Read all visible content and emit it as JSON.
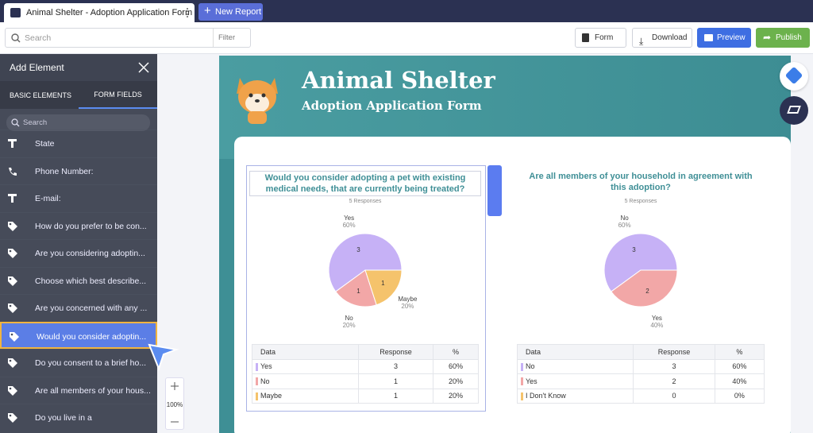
{
  "tabs": {
    "active": "Animal Shelter - Adoption Application Form",
    "new": "New Report"
  },
  "toolbar": {
    "search": "Search",
    "filter": "Filter",
    "form": "Form",
    "download": "Download",
    "preview": "Preview",
    "publish": "Publish"
  },
  "sidebar": {
    "title": "Add Element",
    "tabs": [
      "BASIC ELEMENTS",
      "FORM FIELDS"
    ],
    "search": "Search",
    "items": [
      "State",
      "Phone Number:",
      "E-mail:",
      "How do you prefer to be con...",
      "Are you considering adoptin...",
      "Choose which best describe...",
      "Are you concerned with any ...",
      "Would you consider adoptin...",
      "Do you consent to a brief ho...",
      "Are all members of your hous...",
      "Do you live in a"
    ]
  },
  "zoom": "100%",
  "report": {
    "title": "Animal Shelter",
    "subtitle": "Adoption Application Form"
  },
  "charts": [
    {
      "type": "pie",
      "question": "Would you consider adopting a pet with existing medical needs, that are currently being treated?",
      "responses": "5 Responses",
      "slices": [
        {
          "label": "Yes",
          "value": 3,
          "percent": "60%",
          "color": "#c6b1f6"
        },
        {
          "label": "No",
          "value": 1,
          "percent": "20%",
          "color": "#f2a7a7"
        },
        {
          "label": "Maybe",
          "value": 1,
          "percent": "20%",
          "color": "#f5c36c"
        }
      ],
      "table": {
        "headers": [
          "Data",
          "Response",
          "%"
        ],
        "rows": [
          {
            "color": "#c6b1f6",
            "cells": [
              "Yes",
              "3",
              "60%"
            ]
          },
          {
            "color": "#f2a7a7",
            "cells": [
              "No",
              "1",
              "20%"
            ]
          },
          {
            "color": "#f5c36c",
            "cells": [
              "Maybe",
              "1",
              "20%"
            ]
          }
        ]
      }
    },
    {
      "type": "pie",
      "question": "Are all members of your household in agreement with this adoption?",
      "responses": "5 Responses",
      "slices": [
        {
          "label": "No",
          "value": 3,
          "percent": "60%",
          "color": "#c6b1f6"
        },
        {
          "label": "Yes",
          "value": 2,
          "percent": "40%",
          "color": "#f2a7a7"
        }
      ],
      "table": {
        "headers": [
          "Data",
          "Response",
          "%"
        ],
        "rows": [
          {
            "color": "#c6b1f6",
            "cells": [
              "No",
              "3",
              "60%"
            ]
          },
          {
            "color": "#f2a7a7",
            "cells": [
              "Yes",
              "2",
              "40%"
            ]
          },
          {
            "color": "#f5c36c",
            "cells": [
              "I Don't Know",
              "0",
              "0%"
            ]
          }
        ]
      }
    }
  ]
}
